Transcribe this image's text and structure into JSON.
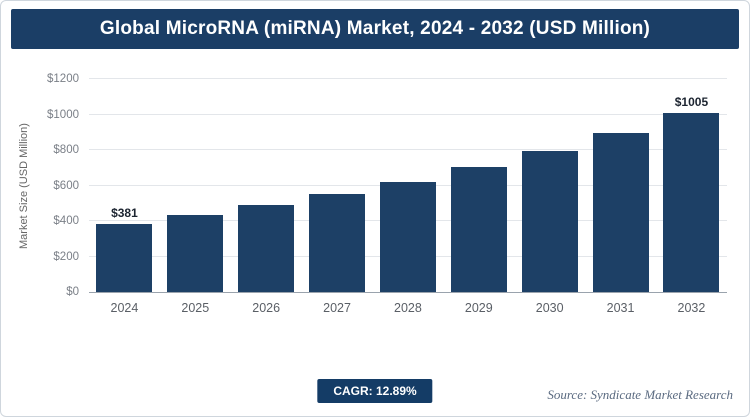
{
  "header": {
    "title": "Global MicroRNA (miRNA) Market, 2024 - 2032 (USD Million)"
  },
  "chart_data": {
    "type": "bar",
    "title": "Global MicroRNA (miRNA) Market, 2024 - 2032 (USD Million)",
    "categories": [
      "2024",
      "2025",
      "2026",
      "2027",
      "2028",
      "2029",
      "2030",
      "2031",
      "2032"
    ],
    "values": [
      381,
      430,
      486,
      548,
      619,
      699,
      789,
      890,
      1005
    ],
    "data_labels": {
      "2024": "$381",
      "2032": "$1005"
    },
    "xlabel": "",
    "ylabel": "Market Size (USD Million)",
    "ylim": [
      0,
      1200
    ],
    "yticks": [
      0,
      200,
      400,
      600,
      800,
      1000,
      1200
    ],
    "ytick_labels": [
      "$0",
      "$200",
      "$400",
      "$600",
      "$800",
      "$1000",
      "$1200"
    ],
    "grid": true,
    "legend": "none",
    "bar_color": "#1d4066"
  },
  "footer": {
    "cagr_label": "CAGR: 12.89%",
    "source": "Source: Syndicate Market Research"
  },
  "colors": {
    "header_bg": "#1b3e66",
    "bar": "#1d4066",
    "badge_bg": "#143c66",
    "gridline": "#e3e6ea"
  }
}
